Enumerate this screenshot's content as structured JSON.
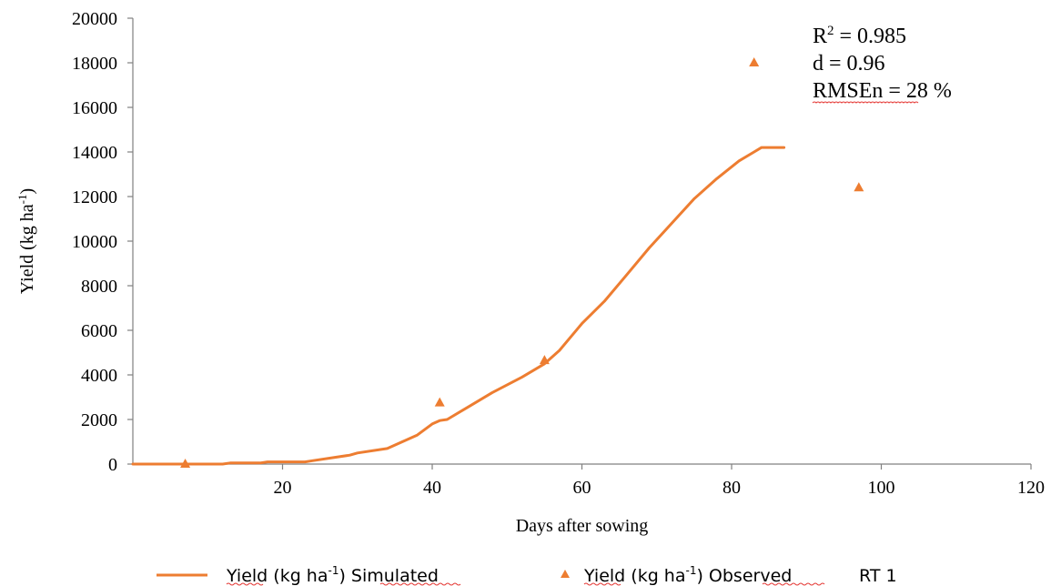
{
  "chart_data": {
    "type": "line",
    "xlabel": "Days after sowing",
    "ylabel": "Yield  (kg ha-1)",
    "xlim": [
      0,
      120
    ],
    "ylim": [
      0,
      20000
    ],
    "x_ticks": [
      "20",
      "40",
      "60",
      "80",
      "100",
      "120"
    ],
    "y_ticks": [
      "0",
      "2000",
      "4000",
      "6000",
      "8000",
      "10000",
      "12000",
      "14000",
      "16000",
      "18000",
      "20000"
    ],
    "grid": false,
    "legend_position": "bottom",
    "annotations": {
      "r2": "R2 = 0.985",
      "d": "d = 0.96",
      "rmsen": "RMSEn = 28 %"
    },
    "series": [
      {
        "name": "Yield (kg ha-1) Simulated",
        "kind": "line",
        "color": "#ED7D31",
        "points": [
          [
            0,
            0
          ],
          [
            12,
            0
          ],
          [
            13,
            50
          ],
          [
            17,
            50
          ],
          [
            18,
            100
          ],
          [
            23,
            100
          ],
          [
            24,
            150
          ],
          [
            27,
            300
          ],
          [
            29,
            400
          ],
          [
            30,
            500
          ],
          [
            34,
            700
          ],
          [
            36,
            1000
          ],
          [
            38,
            1300
          ],
          [
            40,
            1800
          ],
          [
            41,
            1950
          ],
          [
            42,
            2000
          ],
          [
            45,
            2600
          ],
          [
            48,
            3200
          ],
          [
            52,
            3900
          ],
          [
            55,
            4500
          ],
          [
            57,
            5100
          ],
          [
            60,
            6300
          ],
          [
            63,
            7300
          ],
          [
            66,
            8500
          ],
          [
            69,
            9700
          ],
          [
            72,
            10800
          ],
          [
            75,
            11900
          ],
          [
            78,
            12800
          ],
          [
            81,
            13600
          ],
          [
            83,
            14000
          ],
          [
            84,
            14200
          ],
          [
            87,
            14200
          ]
        ]
      },
      {
        "name": "Yield (kg ha-1) Observed",
        "kind": "scatter",
        "color": "#ED7D31",
        "points": [
          [
            7,
            0
          ],
          [
            41,
            2750
          ],
          [
            55,
            4650
          ],
          [
            83,
            18000
          ],
          [
            97,
            12400
          ]
        ]
      }
    ],
    "legend_suffix": "RT 1"
  }
}
